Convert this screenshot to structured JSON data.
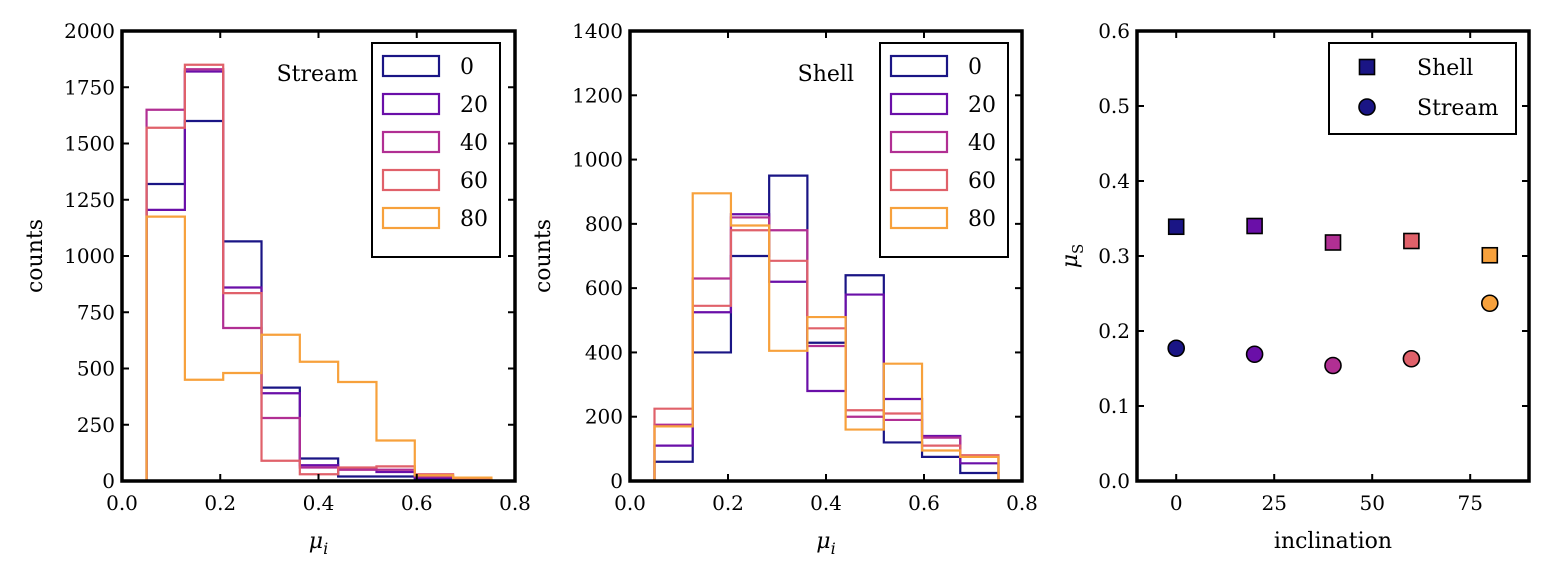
{
  "chart_data": [
    {
      "type": "histogram",
      "title": "Stream",
      "xlabel": "μ",
      "xlabel_sub": "i",
      "ylabel": "counts",
      "xlim": [
        0.0,
        0.8
      ],
      "ylim": [
        0,
        2000
      ],
      "xticks": [
        "0.0",
        "0.2",
        "0.4",
        "0.6",
        "0.8"
      ],
      "yticks": [
        "0",
        "250",
        "500",
        "750",
        "1000",
        "1250",
        "1500",
        "1750",
        "2000"
      ],
      "bin_edges": [
        0.05,
        0.128,
        0.206,
        0.284,
        0.362,
        0.44,
        0.518,
        0.596,
        0.674,
        0.752
      ],
      "series": [
        {
          "name": "0",
          "color": "#1a1585",
          "counts": [
            1320,
            1600,
            1065,
            415,
            100,
            20,
            20,
            10,
            5
          ]
        },
        {
          "name": "20",
          "color": "#6a0fa8",
          "counts": [
            1205,
            1820,
            860,
            390,
            70,
            55,
            40,
            15,
            5
          ]
        },
        {
          "name": "40",
          "color": "#b12f93",
          "counts": [
            1650,
            1830,
            680,
            280,
            60,
            50,
            50,
            20,
            5
          ]
        },
        {
          "name": "60",
          "color": "#e0616a",
          "counts": [
            1570,
            1850,
            835,
            90,
            30,
            60,
            65,
            30,
            10
          ]
        },
        {
          "name": "80",
          "color": "#f7a13c",
          "counts": [
            1175,
            450,
            480,
            650,
            530,
            440,
            180,
            25,
            15
          ]
        }
      ]
    },
    {
      "type": "histogram",
      "title": "Shell",
      "xlabel": "μ",
      "xlabel_sub": "i",
      "ylabel": "counts",
      "xlim": [
        0.0,
        0.8
      ],
      "ylim": [
        0,
        1400
      ],
      "xticks": [
        "0.0",
        "0.2",
        "0.4",
        "0.6",
        "0.8"
      ],
      "yticks": [
        "0",
        "200",
        "400",
        "600",
        "800",
        "1000",
        "1200",
        "1400"
      ],
      "bin_edges": [
        0.05,
        0.128,
        0.206,
        0.284,
        0.362,
        0.44,
        0.518,
        0.596,
        0.674,
        0.752
      ],
      "series": [
        {
          "name": "0",
          "color": "#1a1585",
          "counts": [
            60,
            400,
            700,
            950,
            430,
            640,
            120,
            75,
            25
          ]
        },
        {
          "name": "20",
          "color": "#6a0fa8",
          "counts": [
            110,
            525,
            830,
            620,
            280,
            580,
            255,
            140,
            55
          ]
        },
        {
          "name": "40",
          "color": "#b12f93",
          "counts": [
            175,
            630,
            820,
            780,
            420,
            200,
            190,
            135,
            75
          ]
        },
        {
          "name": "60",
          "color": "#e0616a",
          "counts": [
            225,
            545,
            780,
            685,
            475,
            220,
            210,
            110,
            80
          ]
        },
        {
          "name": "80",
          "color": "#f7a13c",
          "counts": [
            170,
            895,
            795,
            405,
            510,
            160,
            365,
            95,
            75
          ]
        }
      ]
    },
    {
      "type": "scatter",
      "xlabel": "inclination",
      "ylabel": "μ",
      "ylabel_sub": "S",
      "xlim": [
        -10,
        90
      ],
      "ylim": [
        0.0,
        0.6
      ],
      "xticks": [
        {
          "value": 0,
          "label": "0"
        },
        {
          "value": 25,
          "label": "25"
        },
        {
          "value": 50,
          "label": "50"
        },
        {
          "value": 75,
          "label": "75"
        }
      ],
      "yticks": [
        "0.0",
        "0.1",
        "0.2",
        "0.3",
        "0.4",
        "0.5",
        "0.6"
      ],
      "series": [
        {
          "name": "Shell",
          "marker": "square",
          "x": [
            0,
            20,
            40,
            60,
            80
          ],
          "y": [
            0.339,
            0.34,
            0.318,
            0.32,
            0.301
          ],
          "colors": [
            "#1a1585",
            "#6a0fa8",
            "#b12f93",
            "#e0616a",
            "#f7a13c"
          ]
        },
        {
          "name": "Stream",
          "marker": "circle",
          "x": [
            0,
            20,
            40,
            60,
            80
          ],
          "y": [
            0.177,
            0.169,
            0.154,
            0.163,
            0.237
          ],
          "colors": [
            "#1a1585",
            "#6a0fa8",
            "#b12f93",
            "#e0616a",
            "#f7a13c"
          ]
        }
      ],
      "legend_color": "#1a1585"
    }
  ]
}
